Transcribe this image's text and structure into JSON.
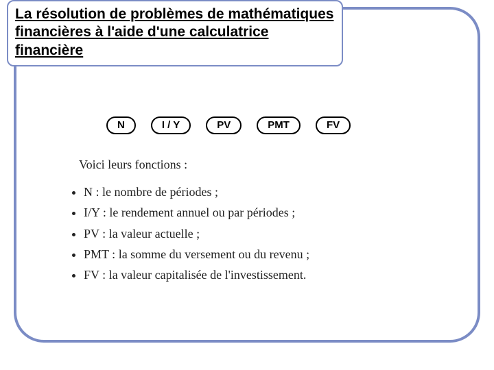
{
  "colors": {
    "frame_border": "#7b8cc5",
    "background": "#ffffff",
    "text": "#000000",
    "body_text": "#222222",
    "key_border": "#000000"
  },
  "title": {
    "line1": "La résolution de problèmes de mathématiques",
    "line2": "financières à l'aide d'une calculatrice",
    "line3": "financière",
    "fontsize": 21,
    "underline": true,
    "border_radius": 10
  },
  "frame": {
    "border_width": 4,
    "border_radius": 44
  },
  "keys": {
    "items": [
      "N",
      "I / Y",
      "PV",
      "PMT",
      "FV"
    ],
    "border_radius": 16,
    "fontsize": 15,
    "font_weight": "bold"
  },
  "intro": {
    "text": "Voici leurs fonctions :",
    "fontsize": 18,
    "font_family": "Times New Roman"
  },
  "definitions": {
    "fontsize": 18,
    "font_family": "Times New Roman",
    "items": [
      {
        "term": "N :",
        "desc": "le nombre de périodes ;"
      },
      {
        "term": "I/Y :",
        "desc": "le rendement annuel ou par périodes ;"
      },
      {
        "term": "PV :",
        "desc": "la valeur actuelle ;"
      },
      {
        "term": "PMT :",
        "desc": "la somme du versement ou du revenu ;"
      },
      {
        "term": "FV :",
        "desc": "la valeur capitalisée de l'investissement."
      }
    ]
  }
}
